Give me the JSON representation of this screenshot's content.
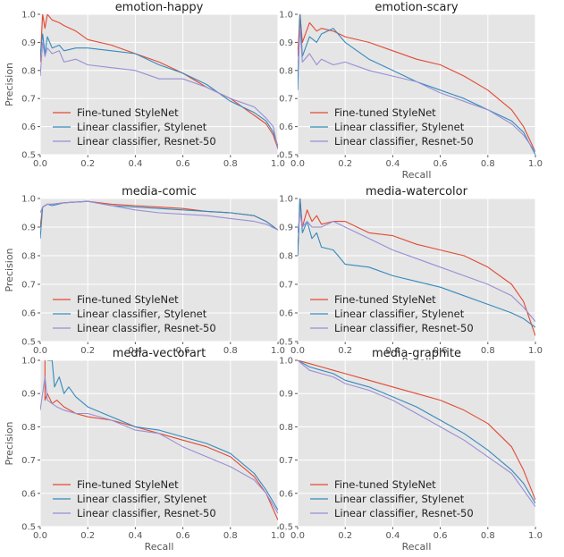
{
  "colors": {
    "fine_tuned": "#e24a33",
    "linear_stylenet": "#348abd",
    "linear_resnet": "#988ed5",
    "panel_background": "#e5e5e5",
    "grid": "#ffffff"
  },
  "legend_labels": [
    "Fine-tuned StyleNet",
    "Linear classifier, Stylenet",
    "Linear classifier, Resnet-50"
  ],
  "chart_data": [
    {
      "type": "line",
      "title": "emotion-happy",
      "xlabel": "",
      "ylabel": "Precision",
      "xlim": [
        0.0,
        1.0
      ],
      "ylim": [
        0.5,
        1.0
      ],
      "xticks": [
        "0.0",
        "0.2",
        "0.4",
        "0.6",
        "0.8",
        "1.0"
      ],
      "yticks": [
        "0.5",
        "0.6",
        "0.7",
        "0.8",
        "0.9",
        "1.0"
      ],
      "grid": true,
      "legend": "lower-left",
      "series": [
        {
          "name": "Fine-tuned StyleNet",
          "color": "#e24a33",
          "x": [
            0.0,
            0.01,
            0.02,
            0.03,
            0.05,
            0.08,
            0.1,
            0.15,
            0.2,
            0.3,
            0.4,
            0.5,
            0.6,
            0.7,
            0.8,
            0.9,
            0.95,
            0.98,
            1.0
          ],
          "y": [
            0.83,
            1.0,
            0.95,
            1.0,
            0.98,
            0.97,
            0.96,
            0.94,
            0.91,
            0.89,
            0.86,
            0.83,
            0.79,
            0.74,
            0.7,
            0.64,
            0.61,
            0.57,
            0.52
          ]
        },
        {
          "name": "Linear classifier, Stylenet",
          "color": "#348abd",
          "x": [
            0.0,
            0.01,
            0.02,
            0.03,
            0.05,
            0.08,
            0.1,
            0.15,
            0.2,
            0.3,
            0.4,
            0.5,
            0.6,
            0.7,
            0.8,
            0.9,
            0.95,
            0.98,
            1.0
          ],
          "y": [
            0.85,
            0.93,
            0.86,
            0.92,
            0.88,
            0.89,
            0.87,
            0.88,
            0.88,
            0.87,
            0.86,
            0.82,
            0.79,
            0.75,
            0.69,
            0.65,
            0.62,
            0.58,
            0.53
          ]
        },
        {
          "name": "Linear classifier, Resnet-50",
          "color": "#988ed5",
          "x": [
            0.0,
            0.01,
            0.02,
            0.03,
            0.05,
            0.08,
            0.1,
            0.15,
            0.2,
            0.3,
            0.4,
            0.5,
            0.6,
            0.7,
            0.8,
            0.9,
            0.95,
            0.98,
            1.0
          ],
          "y": [
            0.78,
            0.9,
            0.85,
            0.88,
            0.86,
            0.87,
            0.83,
            0.84,
            0.82,
            0.81,
            0.8,
            0.77,
            0.77,
            0.74,
            0.7,
            0.67,
            0.63,
            0.6,
            0.52
          ]
        }
      ]
    },
    {
      "type": "line",
      "title": "emotion-scary",
      "xlabel": "Recall",
      "ylabel": "",
      "xlim": [
        0.0,
        1.0
      ],
      "ylim": [
        0.5,
        1.0
      ],
      "xticks": [
        "0.0",
        "0.2",
        "0.4",
        "0.6",
        "0.8",
        "1.0"
      ],
      "yticks": [
        "0.5",
        "0.6",
        "0.7",
        "0.8",
        "0.9",
        "1.0"
      ],
      "grid": true,
      "legend": "lower-left",
      "series": [
        {
          "name": "Fine-tuned StyleNet",
          "color": "#e24a33",
          "x": [
            0.0,
            0.01,
            0.02,
            0.05,
            0.08,
            0.1,
            0.15,
            0.2,
            0.3,
            0.4,
            0.5,
            0.6,
            0.7,
            0.8,
            0.9,
            0.95,
            1.0
          ],
          "y": [
            0.85,
            1.0,
            0.9,
            0.97,
            0.94,
            0.95,
            0.94,
            0.92,
            0.9,
            0.87,
            0.84,
            0.82,
            0.78,
            0.73,
            0.66,
            0.6,
            0.51
          ]
        },
        {
          "name": "Linear classifier, Stylenet",
          "color": "#348abd",
          "x": [
            0.0,
            0.01,
            0.02,
            0.05,
            0.08,
            0.1,
            0.15,
            0.2,
            0.3,
            0.4,
            0.5,
            0.6,
            0.7,
            0.8,
            0.9,
            0.95,
            1.0
          ],
          "y": [
            0.73,
            1.0,
            0.85,
            0.92,
            0.9,
            0.93,
            0.95,
            0.9,
            0.84,
            0.8,
            0.76,
            0.73,
            0.7,
            0.66,
            0.62,
            0.58,
            0.5
          ]
        },
        {
          "name": "Linear classifier, Resnet-50",
          "color": "#988ed5",
          "x": [
            0.0,
            0.01,
            0.02,
            0.05,
            0.08,
            0.1,
            0.15,
            0.2,
            0.3,
            0.4,
            0.5,
            0.6,
            0.7,
            0.8,
            0.9,
            0.95,
            1.0
          ],
          "y": [
            0.8,
            0.95,
            0.83,
            0.86,
            0.82,
            0.84,
            0.82,
            0.83,
            0.8,
            0.78,
            0.76,
            0.72,
            0.69,
            0.66,
            0.61,
            0.57,
            0.51
          ]
        }
      ]
    },
    {
      "type": "line",
      "title": "media-comic",
      "xlabel": "",
      "ylabel": "Precision",
      "xlim": [
        0.0,
        1.0
      ],
      "ylim": [
        0.5,
        1.0
      ],
      "xticks": [
        "0.0",
        "0.2",
        "0.4",
        "0.6",
        "0.8",
        "1.0"
      ],
      "yticks": [
        "0.5",
        "0.6",
        "0.7",
        "0.8",
        "0.9",
        "1.0"
      ],
      "grid": true,
      "legend": "lower-left",
      "series": [
        {
          "name": "Fine-tuned StyleNet",
          "color": "#e24a33",
          "x": [
            0.0,
            0.01,
            0.03,
            0.05,
            0.1,
            0.2,
            0.3,
            0.4,
            0.5,
            0.6,
            0.7,
            0.8,
            0.9,
            0.95,
            1.0
          ],
          "y": [
            0.9,
            0.97,
            0.98,
            0.98,
            0.985,
            0.99,
            0.98,
            0.975,
            0.97,
            0.965,
            0.955,
            0.95,
            0.94,
            0.92,
            0.89
          ]
        },
        {
          "name": "Linear classifier, Stylenet",
          "color": "#348abd",
          "x": [
            0.0,
            0.01,
            0.03,
            0.05,
            0.1,
            0.2,
            0.3,
            0.4,
            0.5,
            0.6,
            0.7,
            0.8,
            0.9,
            0.95,
            1.0
          ],
          "y": [
            0.86,
            0.97,
            0.98,
            0.975,
            0.985,
            0.99,
            0.975,
            0.97,
            0.965,
            0.96,
            0.955,
            0.95,
            0.94,
            0.92,
            0.89
          ]
        },
        {
          "name": "Linear classifier, Resnet-50",
          "color": "#988ed5",
          "x": [
            0.0,
            0.01,
            0.03,
            0.05,
            0.1,
            0.2,
            0.3,
            0.4,
            0.5,
            0.6,
            0.7,
            0.8,
            0.9,
            0.95,
            1.0
          ],
          "y": [
            0.95,
            0.97,
            0.98,
            0.98,
            0.985,
            0.99,
            0.975,
            0.96,
            0.95,
            0.945,
            0.94,
            0.93,
            0.92,
            0.91,
            0.89
          ]
        }
      ]
    },
    {
      "type": "line",
      "title": "media-watercolor",
      "xlabel": "Recall",
      "ylabel": "",
      "xlim": [
        0.0,
        1.0
      ],
      "ylim": [
        0.5,
        1.0
      ],
      "xticks": [
        "0.0",
        "0.2",
        "0.4",
        "0.6",
        "0.8",
        "1.0"
      ],
      "yticks": [
        "0.5",
        "0.6",
        "0.7",
        "0.8",
        "0.9",
        "1.0"
      ],
      "grid": true,
      "legend": "lower-left",
      "series": [
        {
          "name": "Fine-tuned StyleNet",
          "color": "#e24a33",
          "x": [
            0.0,
            0.01,
            0.02,
            0.04,
            0.06,
            0.08,
            0.1,
            0.15,
            0.2,
            0.3,
            0.4,
            0.5,
            0.6,
            0.7,
            0.8,
            0.9,
            0.95,
            1.0
          ],
          "y": [
            0.8,
            1.0,
            0.9,
            0.96,
            0.92,
            0.94,
            0.91,
            0.92,
            0.92,
            0.88,
            0.87,
            0.84,
            0.82,
            0.8,
            0.76,
            0.7,
            0.64,
            0.52
          ]
        },
        {
          "name": "Linear classifier, Stylenet",
          "color": "#348abd",
          "x": [
            0.0,
            0.01,
            0.02,
            0.04,
            0.06,
            0.08,
            0.1,
            0.15,
            0.2,
            0.3,
            0.4,
            0.5,
            0.6,
            0.7,
            0.8,
            0.9,
            0.95,
            1.0
          ],
          "y": [
            0.8,
            1.0,
            0.88,
            0.92,
            0.86,
            0.88,
            0.83,
            0.82,
            0.77,
            0.76,
            0.73,
            0.71,
            0.69,
            0.66,
            0.63,
            0.6,
            0.58,
            0.55
          ]
        },
        {
          "name": "Linear classifier, Resnet-50",
          "color": "#988ed5",
          "x": [
            0.0,
            0.01,
            0.02,
            0.04,
            0.06,
            0.08,
            0.1,
            0.15,
            0.2,
            0.3,
            0.4,
            0.5,
            0.6,
            0.7,
            0.8,
            0.9,
            0.95,
            1.0
          ],
          "y": [
            0.88,
            0.95,
            0.9,
            0.92,
            0.9,
            0.9,
            0.9,
            0.92,
            0.9,
            0.86,
            0.82,
            0.79,
            0.76,
            0.73,
            0.7,
            0.66,
            0.62,
            0.57
          ]
        }
      ]
    },
    {
      "type": "line",
      "title": "media-vectorart",
      "xlabel": "Recall",
      "ylabel": "Precision",
      "xlim": [
        0.0,
        1.0
      ],
      "ylim": [
        0.5,
        1.0
      ],
      "xticks": [
        "0.0",
        "0.2",
        "0.4",
        "0.6",
        "0.8",
        "1.0"
      ],
      "yticks": [
        "0.5",
        "0.6",
        "0.7",
        "0.8",
        "0.9",
        "1.0"
      ],
      "grid": true,
      "legend": "lower-left",
      "series": [
        {
          "name": "Fine-tuned StyleNet",
          "color": "#e24a33",
          "x": [
            0.02,
            0.02,
            0.03,
            0.05,
            0.07,
            0.1,
            0.15,
            0.2,
            0.3,
            0.4,
            0.5,
            0.6,
            0.7,
            0.8,
            0.9,
            0.95,
            1.0
          ],
          "y": [
            1.0,
            0.88,
            0.9,
            0.87,
            0.88,
            0.86,
            0.84,
            0.83,
            0.82,
            0.8,
            0.78,
            0.76,
            0.74,
            0.71,
            0.65,
            0.6,
            0.52
          ]
        },
        {
          "name": "Linear classifier, Stylenet",
          "color": "#348abd",
          "x": [
            0.03,
            0.05,
            0.06,
            0.08,
            0.1,
            0.12,
            0.15,
            0.2,
            0.3,
            0.4,
            0.5,
            0.6,
            0.7,
            0.8,
            0.9,
            0.95,
            1.0
          ],
          "y": [
            1.0,
            1.0,
            0.92,
            0.95,
            0.9,
            0.92,
            0.89,
            0.86,
            0.83,
            0.8,
            0.79,
            0.77,
            0.75,
            0.72,
            0.66,
            0.61,
            0.55
          ]
        },
        {
          "name": "Linear classifier, Resnet-50",
          "color": "#988ed5",
          "x": [
            0.0,
            0.02,
            0.03,
            0.05,
            0.07,
            0.1,
            0.15,
            0.2,
            0.3,
            0.4,
            0.5,
            0.6,
            0.7,
            0.8,
            0.9,
            0.95,
            1.0
          ],
          "y": [
            0.85,
            0.95,
            0.88,
            0.87,
            0.86,
            0.85,
            0.84,
            0.84,
            0.82,
            0.79,
            0.78,
            0.74,
            0.71,
            0.68,
            0.64,
            0.6,
            0.54
          ]
        }
      ]
    },
    {
      "type": "line",
      "title": "media-graphite",
      "xlabel": "Recall",
      "ylabel": "",
      "xlim": [
        0.0,
        1.0
      ],
      "ylim": [
        0.5,
        1.0
      ],
      "xticks": [
        "0.0",
        "0.2",
        "0.4",
        "0.6",
        "0.8",
        "1.0"
      ],
      "yticks": [
        "0.5",
        "0.6",
        "0.7",
        "0.8",
        "0.9",
        "1.0"
      ],
      "grid": true,
      "legend": "lower-left",
      "series": [
        {
          "name": "Fine-tuned StyleNet",
          "color": "#e24a33",
          "x": [
            0.0,
            0.05,
            0.1,
            0.15,
            0.2,
            0.3,
            0.4,
            0.5,
            0.6,
            0.7,
            0.8,
            0.9,
            0.95,
            1.0
          ],
          "y": [
            1.0,
            0.99,
            0.98,
            0.97,
            0.96,
            0.94,
            0.92,
            0.9,
            0.88,
            0.85,
            0.81,
            0.74,
            0.67,
            0.58
          ]
        },
        {
          "name": "Linear classifier, Stylenet",
          "color": "#348abd",
          "x": [
            0.0,
            0.05,
            0.1,
            0.15,
            0.2,
            0.3,
            0.4,
            0.5,
            0.6,
            0.7,
            0.8,
            0.9,
            0.95,
            1.0
          ],
          "y": [
            1.0,
            0.98,
            0.97,
            0.96,
            0.94,
            0.92,
            0.89,
            0.86,
            0.82,
            0.78,
            0.73,
            0.67,
            0.63,
            0.57
          ]
        },
        {
          "name": "Linear classifier, Resnet-50",
          "color": "#988ed5",
          "x": [
            0.0,
            0.05,
            0.1,
            0.15,
            0.2,
            0.3,
            0.4,
            0.5,
            0.6,
            0.7,
            0.8,
            0.9,
            0.95,
            1.0
          ],
          "y": [
            1.0,
            0.97,
            0.96,
            0.95,
            0.93,
            0.91,
            0.88,
            0.84,
            0.8,
            0.76,
            0.71,
            0.66,
            0.61,
            0.56
          ]
        }
      ]
    }
  ]
}
